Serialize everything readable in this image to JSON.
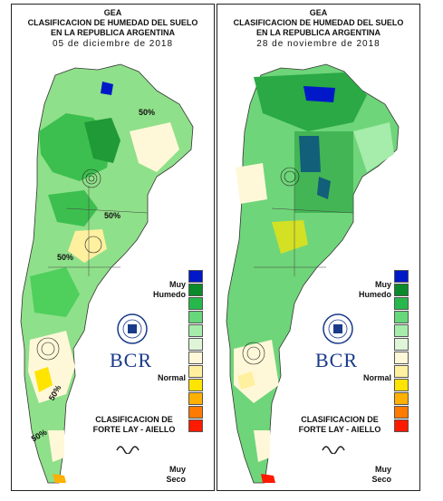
{
  "panels": [
    {
      "title_lines": [
        "GEA",
        "CLASIFICACION DE HUMEDAD DEL SUELO",
        "EN LA REPUBLICA ARGENTINA"
      ],
      "date": "05 de diciembre de 2018",
      "contour_labels": [
        "50%",
        "50%",
        "50%",
        "50%",
        "50%"
      ]
    },
    {
      "title_lines": [
        "GEA",
        "CLASIFICACION DE HUMEDAD DEL SUELO",
        "EN LA REPUBLICA ARGENTINA"
      ],
      "date": "28 de noviembre de 2018",
      "contour_labels": []
    }
  ],
  "legend": {
    "top_label_1": "Muy",
    "top_label_2": "Humedo",
    "middle_label": "Normal",
    "bottom_label_1": "Muy",
    "bottom_label_2": "Seco",
    "colors": [
      "#0018c8",
      "#0a8a2a",
      "#26b84a",
      "#66d77a",
      "#a6ecaa",
      "#dff5d8",
      "#fff8d8",
      "#fff0a0",
      "#ffe400",
      "#ffb000",
      "#ff7a00",
      "#ff1a00"
    ]
  },
  "brand": {
    "name": "BCR",
    "classification_1": "CLASIFICACION DE",
    "classification_2": "FORTE LAY - AIELLO"
  }
}
